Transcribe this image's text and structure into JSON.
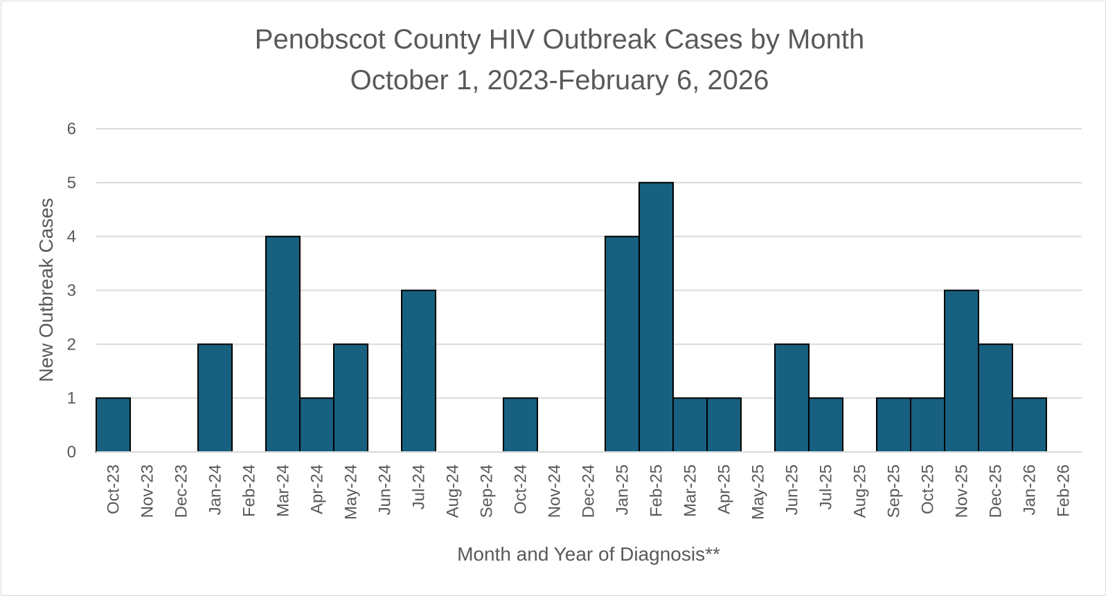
{
  "chart_data": {
    "type": "bar",
    "title": "Penobscot County HIV Outbreak Cases by Month",
    "subtitle": "October 1, 2023-February 6, 2026",
    "xlabel": "Month and Year of Diagnosis**",
    "ylabel": "New Outbreak Cases",
    "ylim": [
      0,
      6
    ],
    "yticks": [
      "0",
      "1",
      "2",
      "3",
      "4",
      "5",
      "6"
    ],
    "grid": true,
    "legend": "none",
    "bar_color": "#17607f",
    "bar_edge_color": "#000000",
    "categories": [
      "Oct-23",
      "Nov-23",
      "Dec-23",
      "Jan-24",
      "Feb-24",
      "Mar-24",
      "Apr-24",
      "May-24",
      "Jun-24",
      "Jul-24",
      "Aug-24",
      "Sep-24",
      "Oct-24",
      "Nov-24",
      "Dec-24",
      "Jan-25",
      "Feb-25",
      "Mar-25",
      "Apr-25",
      "May-25",
      "Jun-25",
      "Jul-25",
      "Aug-25",
      "Sep-25",
      "Oct-25",
      "Nov-25",
      "Dec-25",
      "Jan-26",
      "Feb-26"
    ],
    "values": [
      1,
      0,
      0,
      2,
      0,
      4,
      1,
      2,
      0,
      3,
      0,
      0,
      1,
      0,
      0,
      4,
      5,
      1,
      1,
      0,
      2,
      1,
      0,
      1,
      1,
      3,
      2,
      1,
      0
    ]
  }
}
